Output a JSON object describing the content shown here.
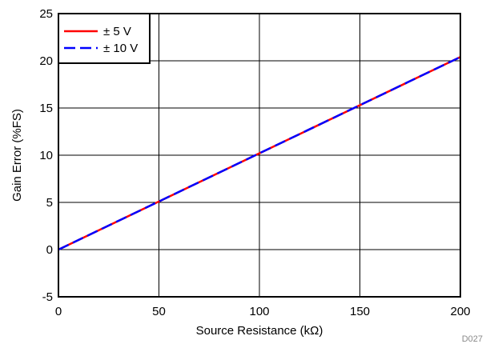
{
  "chart_data": {
    "type": "line",
    "title": "",
    "xlabel": "Source Resistance (kΩ)",
    "ylabel": "Gain Error (%FS)",
    "xlim": [
      0,
      200
    ],
    "ylim": [
      -5,
      25
    ],
    "x_ticks": [
      0,
      50,
      100,
      150,
      200
    ],
    "y_ticks": [
      -5,
      0,
      5,
      10,
      15,
      20,
      25
    ],
    "x_tick_labels": [
      "0",
      "50",
      "100",
      "150",
      "200"
    ],
    "y_tick_labels": [
      "-5",
      "0",
      "5",
      "10",
      "15",
      "20",
      "25"
    ],
    "grid": true,
    "legend_position": "top-left",
    "series": [
      {
        "name": "± 5 V",
        "color": "#ff0000",
        "line_style": "solid",
        "x": [
          0,
          50,
          100,
          150,
          200
        ],
        "y": [
          0,
          5.1,
          10.2,
          15.3,
          20.4
        ]
      },
      {
        "name": "± 10 V",
        "color": "#0000ff",
        "line_style": "dashed",
        "x": [
          0,
          50,
          100,
          150,
          200
        ],
        "y": [
          0,
          5.1,
          10.2,
          15.3,
          20.4
        ]
      }
    ],
    "annotation": "D027"
  }
}
